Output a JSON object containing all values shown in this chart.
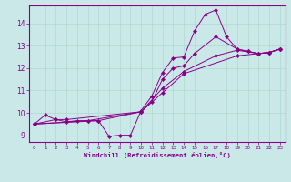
{
  "xlabel": "Windchill (Refroidissement éolien,°C)",
  "ylabel": "",
  "bg_color": "#cbe8e8",
  "line_color": "#880088",
  "xlim": [
    -0.5,
    23.5
  ],
  "ylim": [
    8.7,
    14.8
  ],
  "xticks": [
    0,
    1,
    2,
    3,
    4,
    5,
    6,
    7,
    8,
    9,
    10,
    11,
    12,
    13,
    14,
    15,
    16,
    17,
    18,
    19,
    20,
    21,
    22,
    23
  ],
  "yticks": [
    9,
    10,
    11,
    12,
    13,
    14
  ],
  "grid_color": "#b0d8d0",
  "lines": [
    {
      "x": [
        0,
        1,
        2,
        3,
        4,
        5,
        6,
        7,
        8,
        9,
        10,
        11,
        12,
        13,
        14,
        15,
        16,
        17,
        18,
        19,
        20,
        21,
        22,
        23
      ],
      "y": [
        9.5,
        9.9,
        9.7,
        9.6,
        9.65,
        9.65,
        9.65,
        8.95,
        9.0,
        9.0,
        10.1,
        10.75,
        11.8,
        12.45,
        12.5,
        13.65,
        14.4,
        14.6,
        13.4,
        12.85,
        12.75,
        12.65,
        12.7,
        12.85
      ]
    },
    {
      "x": [
        0,
        2,
        3,
        10,
        11,
        12,
        13,
        14,
        15,
        17,
        19,
        20,
        21,
        22,
        23
      ],
      "y": [
        9.5,
        9.7,
        9.7,
        10.05,
        10.5,
        11.5,
        12.0,
        12.1,
        12.65,
        13.4,
        12.85,
        12.75,
        12.65,
        12.7,
        12.85
      ]
    },
    {
      "x": [
        0,
        5,
        10,
        12,
        14,
        17,
        19,
        21,
        22,
        23
      ],
      "y": [
        9.5,
        9.65,
        10.05,
        11.1,
        11.85,
        12.55,
        12.8,
        12.65,
        12.7,
        12.85
      ]
    },
    {
      "x": [
        0,
        6,
        10,
        12,
        14,
        19,
        21,
        22,
        23
      ],
      "y": [
        9.5,
        9.65,
        10.05,
        10.9,
        11.75,
        12.55,
        12.65,
        12.7,
        12.85
      ]
    }
  ]
}
